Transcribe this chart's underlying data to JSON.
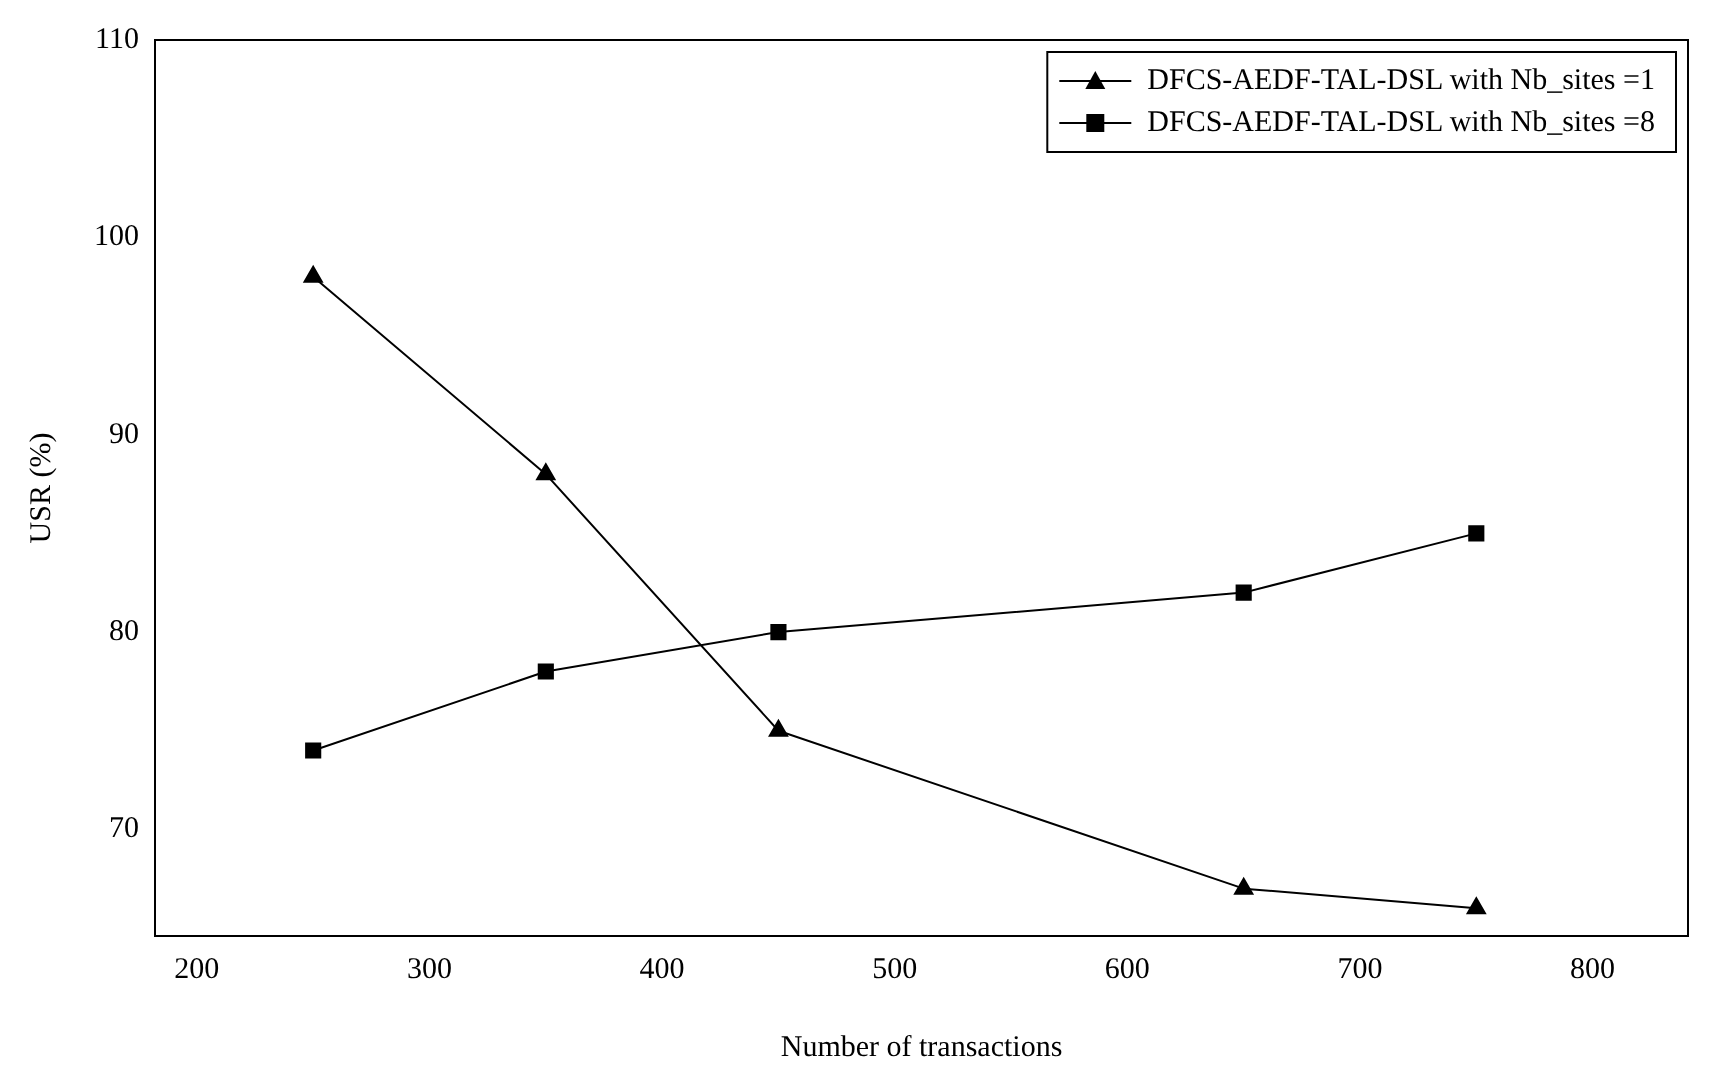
{
  "chart_data": {
    "type": "line",
    "xlabel": "Number of transactions",
    "ylabel": "USR (%)",
    "x": [
      250,
      350,
      450,
      650,
      750
    ],
    "series": [
      {
        "name": "DFCS-AEDF-TAL-DSL with Nb_sites =1",
        "color": "#000000",
        "marker": "triangle",
        "values": [
          98,
          88,
          75,
          67,
          66
        ]
      },
      {
        "name": "DFCS-AEDF-TAL-DSL with Nb_sites =8",
        "color": "#000000",
        "marker": "square",
        "values": [
          74,
          78,
          80,
          82,
          85
        ]
      }
    ],
    "xlim": [
      182,
      841
    ],
    "xticks": [
      200,
      300,
      400,
      500,
      600,
      700,
      800
    ],
    "ylim": [
      64.6,
      110
    ],
    "yticks": [
      70,
      80,
      90,
      100,
      110
    ],
    "grid": false,
    "legend": "top right",
    "line_style": "solid"
  }
}
